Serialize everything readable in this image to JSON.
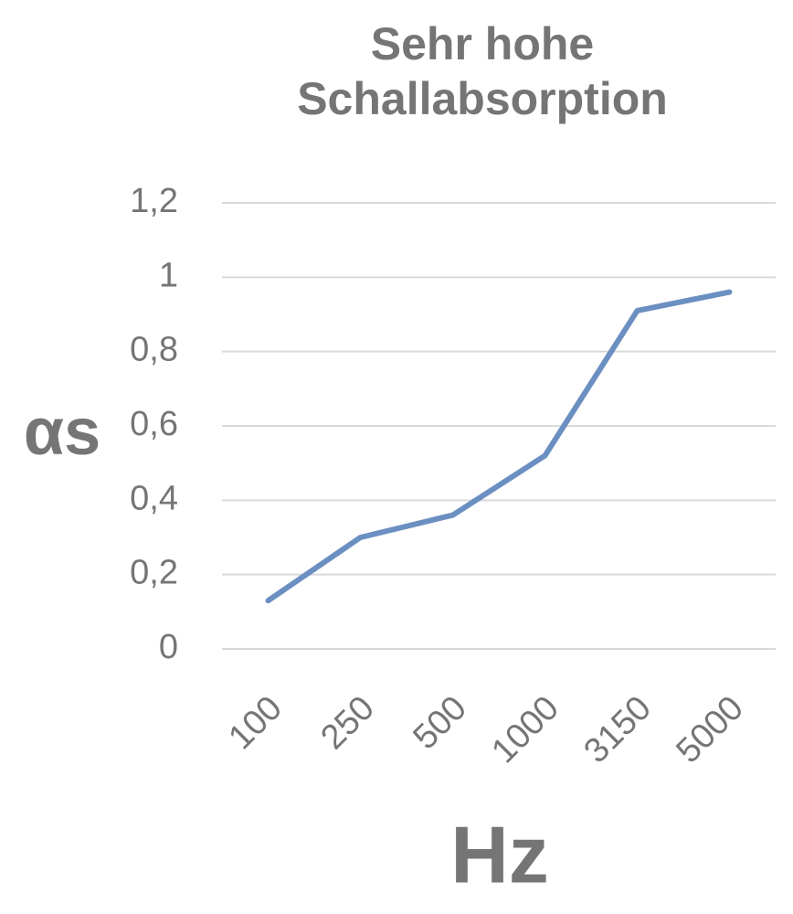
{
  "chart_data": {
    "type": "line",
    "title": "Sehr hohe Schallabsorption",
    "y_label": "αs",
    "x_label": "Hz",
    "categories": [
      "100",
      "250",
      "500",
      "1000",
      "3150",
      "5000"
    ],
    "values": [
      0.13,
      0.3,
      0.36,
      0.52,
      0.91,
      0.96
    ],
    "color": "#6b8fc1",
    "ylim": [
      0,
      1.2
    ],
    "yticks": [
      0,
      {
        "value": 0.2,
        "label": "0,2"
      },
      {
        "value": 0.4,
        "label": "0,4"
      },
      {
        "value": 0.6,
        "label": "0,6"
      },
      {
        "value": 0.8,
        "label": "0,8"
      },
      1,
      {
        "value": 1.2,
        "label": "1,2"
      }
    ],
    "grid": true
  }
}
